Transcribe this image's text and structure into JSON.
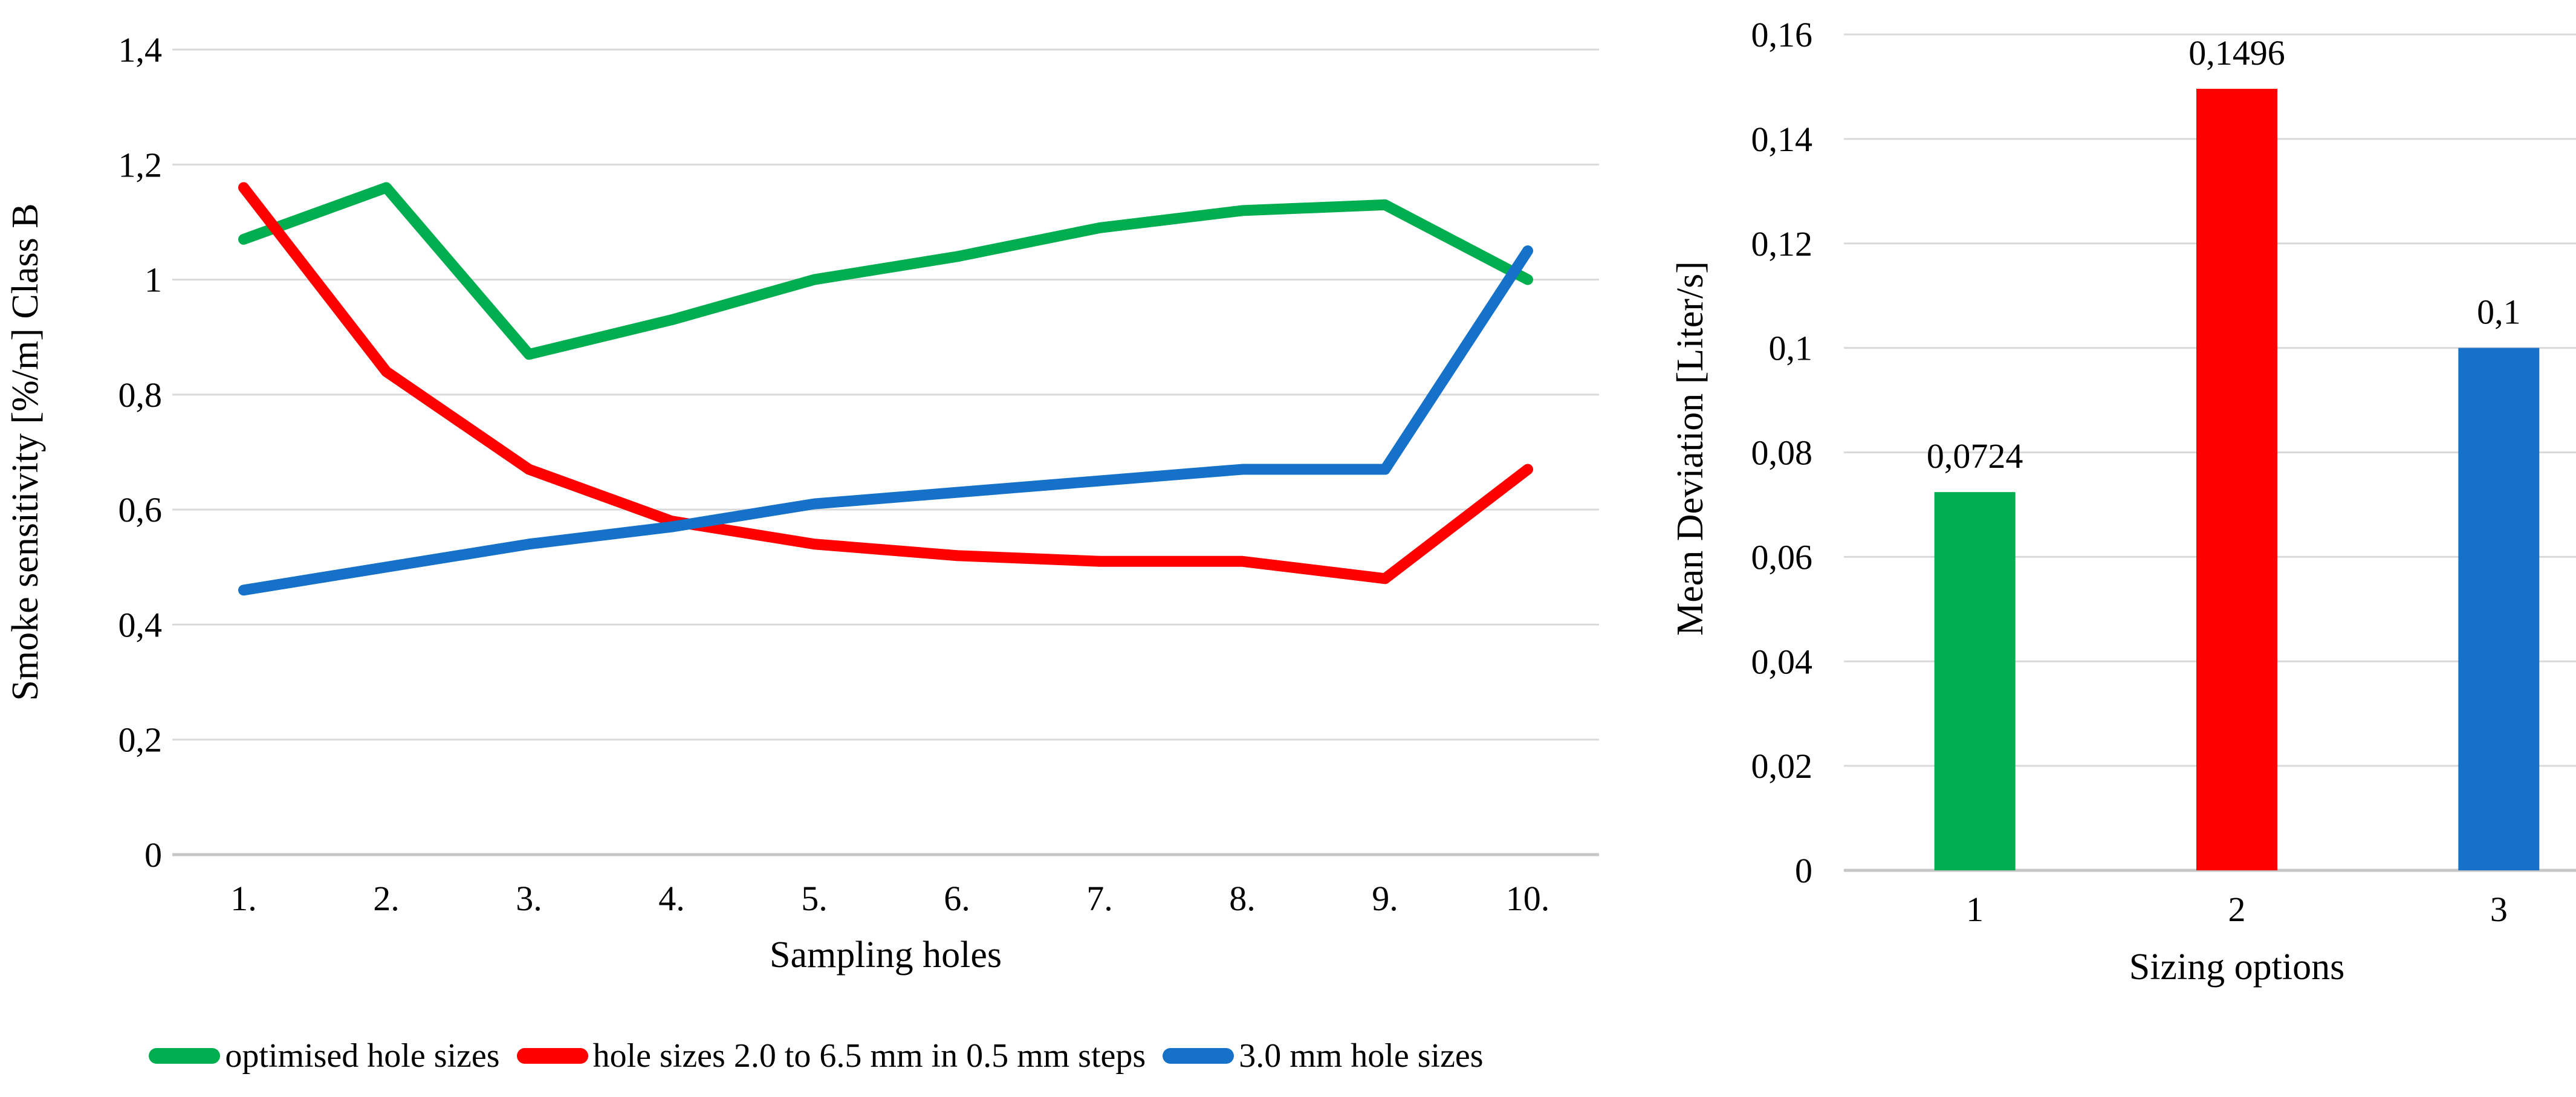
{
  "colors": {
    "green": "#00AE50",
    "red": "#FF0000",
    "blue": "#1572C8",
    "gridline": "#D9D9D9",
    "axis_line": "#C6C6C6",
    "text": "#000000"
  },
  "chart_data": [
    {
      "type": "line",
      "title": "",
      "xlabel": "Sampling holes",
      "ylabel": "Smoke sensitivity [%/m] Class B",
      "categories": [
        "1.",
        "2.",
        "3.",
        "4.",
        "5.",
        "6.",
        "7.",
        "8.",
        "9.",
        "10."
      ],
      "ylim": [
        0,
        1.4
      ],
      "ytick_step": 0.2,
      "ytick_labels": [
        "0",
        "0,2",
        "0,4",
        "0,6",
        "0,8",
        "1",
        "1,2",
        "1,4"
      ],
      "grid": true,
      "legend_position": "bottom",
      "series": [
        {
          "name": "optimised hole sizes",
          "color_key": "green",
          "values": [
            1.07,
            1.16,
            0.87,
            0.93,
            1.0,
            1.04,
            1.09,
            1.12,
            1.13,
            1.0
          ]
        },
        {
          "name": "hole sizes 2.0 to 6.5 mm in 0.5 mm steps",
          "color_key": "red",
          "values": [
            1.16,
            0.84,
            0.67,
            0.58,
            0.54,
            0.52,
            0.51,
            0.51,
            0.48,
            0.67
          ]
        },
        {
          "name": "3.0 mm hole sizes",
          "color_key": "blue",
          "values": [
            0.46,
            0.5,
            0.54,
            0.57,
            0.61,
            0.63,
            0.65,
            0.67,
            0.67,
            1.05
          ]
        }
      ]
    },
    {
      "type": "bar",
      "title": "",
      "xlabel": "Sizing options",
      "ylabel": "Mean Deviation [Liter/s]",
      "categories": [
        "1",
        "2",
        "3"
      ],
      "values": [
        0.0724,
        0.1496,
        0.1
      ],
      "bar_labels": [
        "0,0724",
        "0,1496",
        "0,1"
      ],
      "bar_colors": [
        "green",
        "red",
        "blue"
      ],
      "ylim": [
        0,
        0.16
      ],
      "ytick_step": 0.02,
      "ytick_labels": [
        "0",
        "0,02",
        "0,04",
        "0,06",
        "0,08",
        "0,1",
        "0,12",
        "0,14",
        "0,16"
      ],
      "grid": true,
      "legend_position": "none"
    }
  ]
}
